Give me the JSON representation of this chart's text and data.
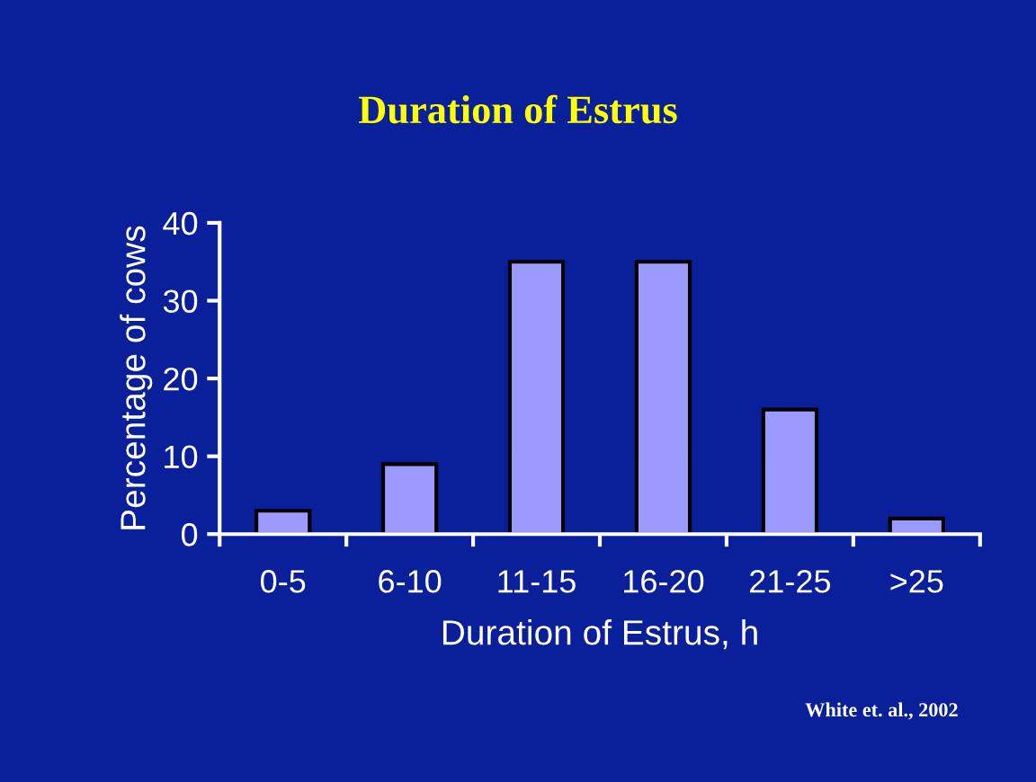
{
  "chart_data": {
    "type": "bar",
    "title": "Duration of Estrus",
    "xlabel": "Duration of Estrus, h",
    "ylabel": "Percentage of cows",
    "categories": [
      "0-5",
      "6-10",
      "11-15",
      "16-20",
      "21-25",
      ">25"
    ],
    "values": [
      3,
      9,
      35,
      35,
      16,
      2
    ],
    "color": "#9b9bff",
    "ylim": [
      0,
      40
    ],
    "yticks": [
      0,
      10,
      20,
      30,
      40
    ],
    "grid": false,
    "legend": false,
    "annotations": [
      "White et. al., 2002"
    ]
  }
}
